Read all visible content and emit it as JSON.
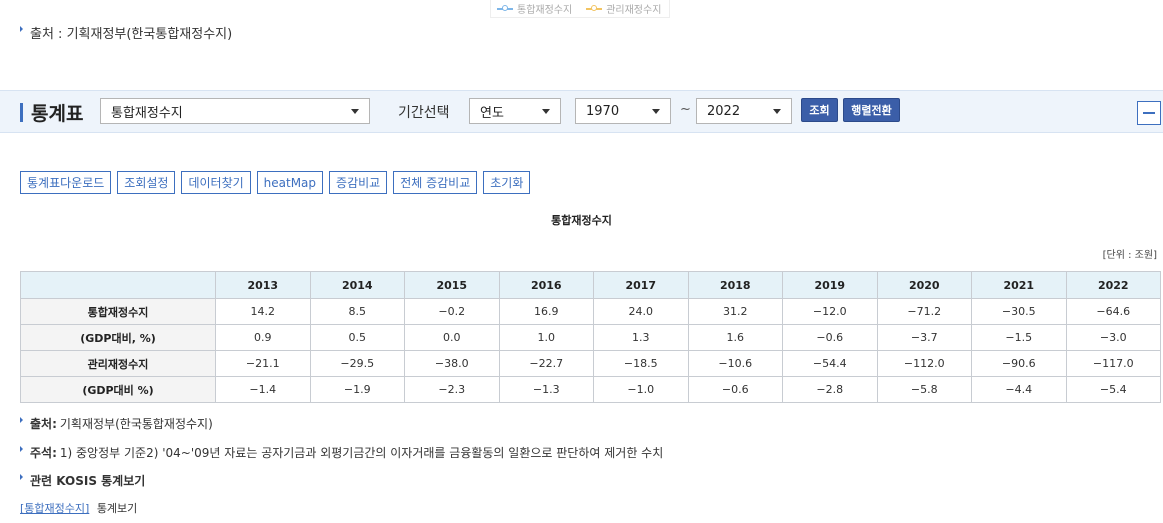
{
  "legend": [
    {
      "label": "통합재정수지",
      "color": "#7eb6e8"
    },
    {
      "label": "관리재정수지",
      "color": "#f2c462"
    }
  ],
  "source_top": "출처 : 기획재정부(한국통합재정수지)",
  "controls": {
    "title": "통계표",
    "table_select": "통합재정수지",
    "period_label": "기간선택",
    "period_type": "연도",
    "start_year": "1970",
    "tilde": "~",
    "end_year": "2022",
    "search_button": "조회",
    "transpose_button": "행렬전환"
  },
  "toolbar": [
    "통계표다운로드",
    "조회설정",
    "데이터찾기",
    "heatMap",
    "증감비교",
    "전체 증감비교",
    "초기화"
  ],
  "table_title": "통합재정수지",
  "unit": "[단위 : 조원]",
  "table": {
    "years": [
      "2013",
      "2014",
      "2015",
      "2016",
      "2017",
      "2018",
      "2019",
      "2020",
      "2021",
      "2022"
    ],
    "rows": [
      {
        "label": "통합재정수지",
        "values": [
          "14.2",
          "8.5",
          "−0.2",
          "16.9",
          "24.0",
          "31.2",
          "−12.0",
          "−71.2",
          "−30.5",
          "−64.6"
        ]
      },
      {
        "label": "(GDP대비, %)",
        "values": [
          "0.9",
          "0.5",
          "0.0",
          "1.0",
          "1.3",
          "1.6",
          "−0.6",
          "−3.7",
          "−1.5",
          "−3.0"
        ]
      },
      {
        "label": "관리재정수지",
        "values": [
          "−21.1",
          "−29.5",
          "−38.0",
          "−22.7",
          "−18.5",
          "−10.6",
          "−54.4",
          "−112.0",
          "−90.6",
          "−117.0"
        ]
      },
      {
        "label": "(GDP대비 %)",
        "values": [
          "−1.4",
          "−1.9",
          "−2.3",
          "−1.3",
          "−1.0",
          "−0.6",
          "−2.8",
          "−5.8",
          "−4.4",
          "−5.4"
        ]
      }
    ]
  },
  "notes": {
    "source_label": "출처:",
    "source_text": "기획재정부(한국통합재정수지)",
    "remark_label": "주석:",
    "remark_text": "1) 중앙정부 기준2) '04~'09년 자료는 공자기금과 외평기금간의 이자거래를 금융활동의 일환으로 판단하여 제거한 수치",
    "related": "관련 KOSIS 통계보기",
    "link_text": "[통합재정수지]",
    "link_suffix": "통계보기"
  }
}
